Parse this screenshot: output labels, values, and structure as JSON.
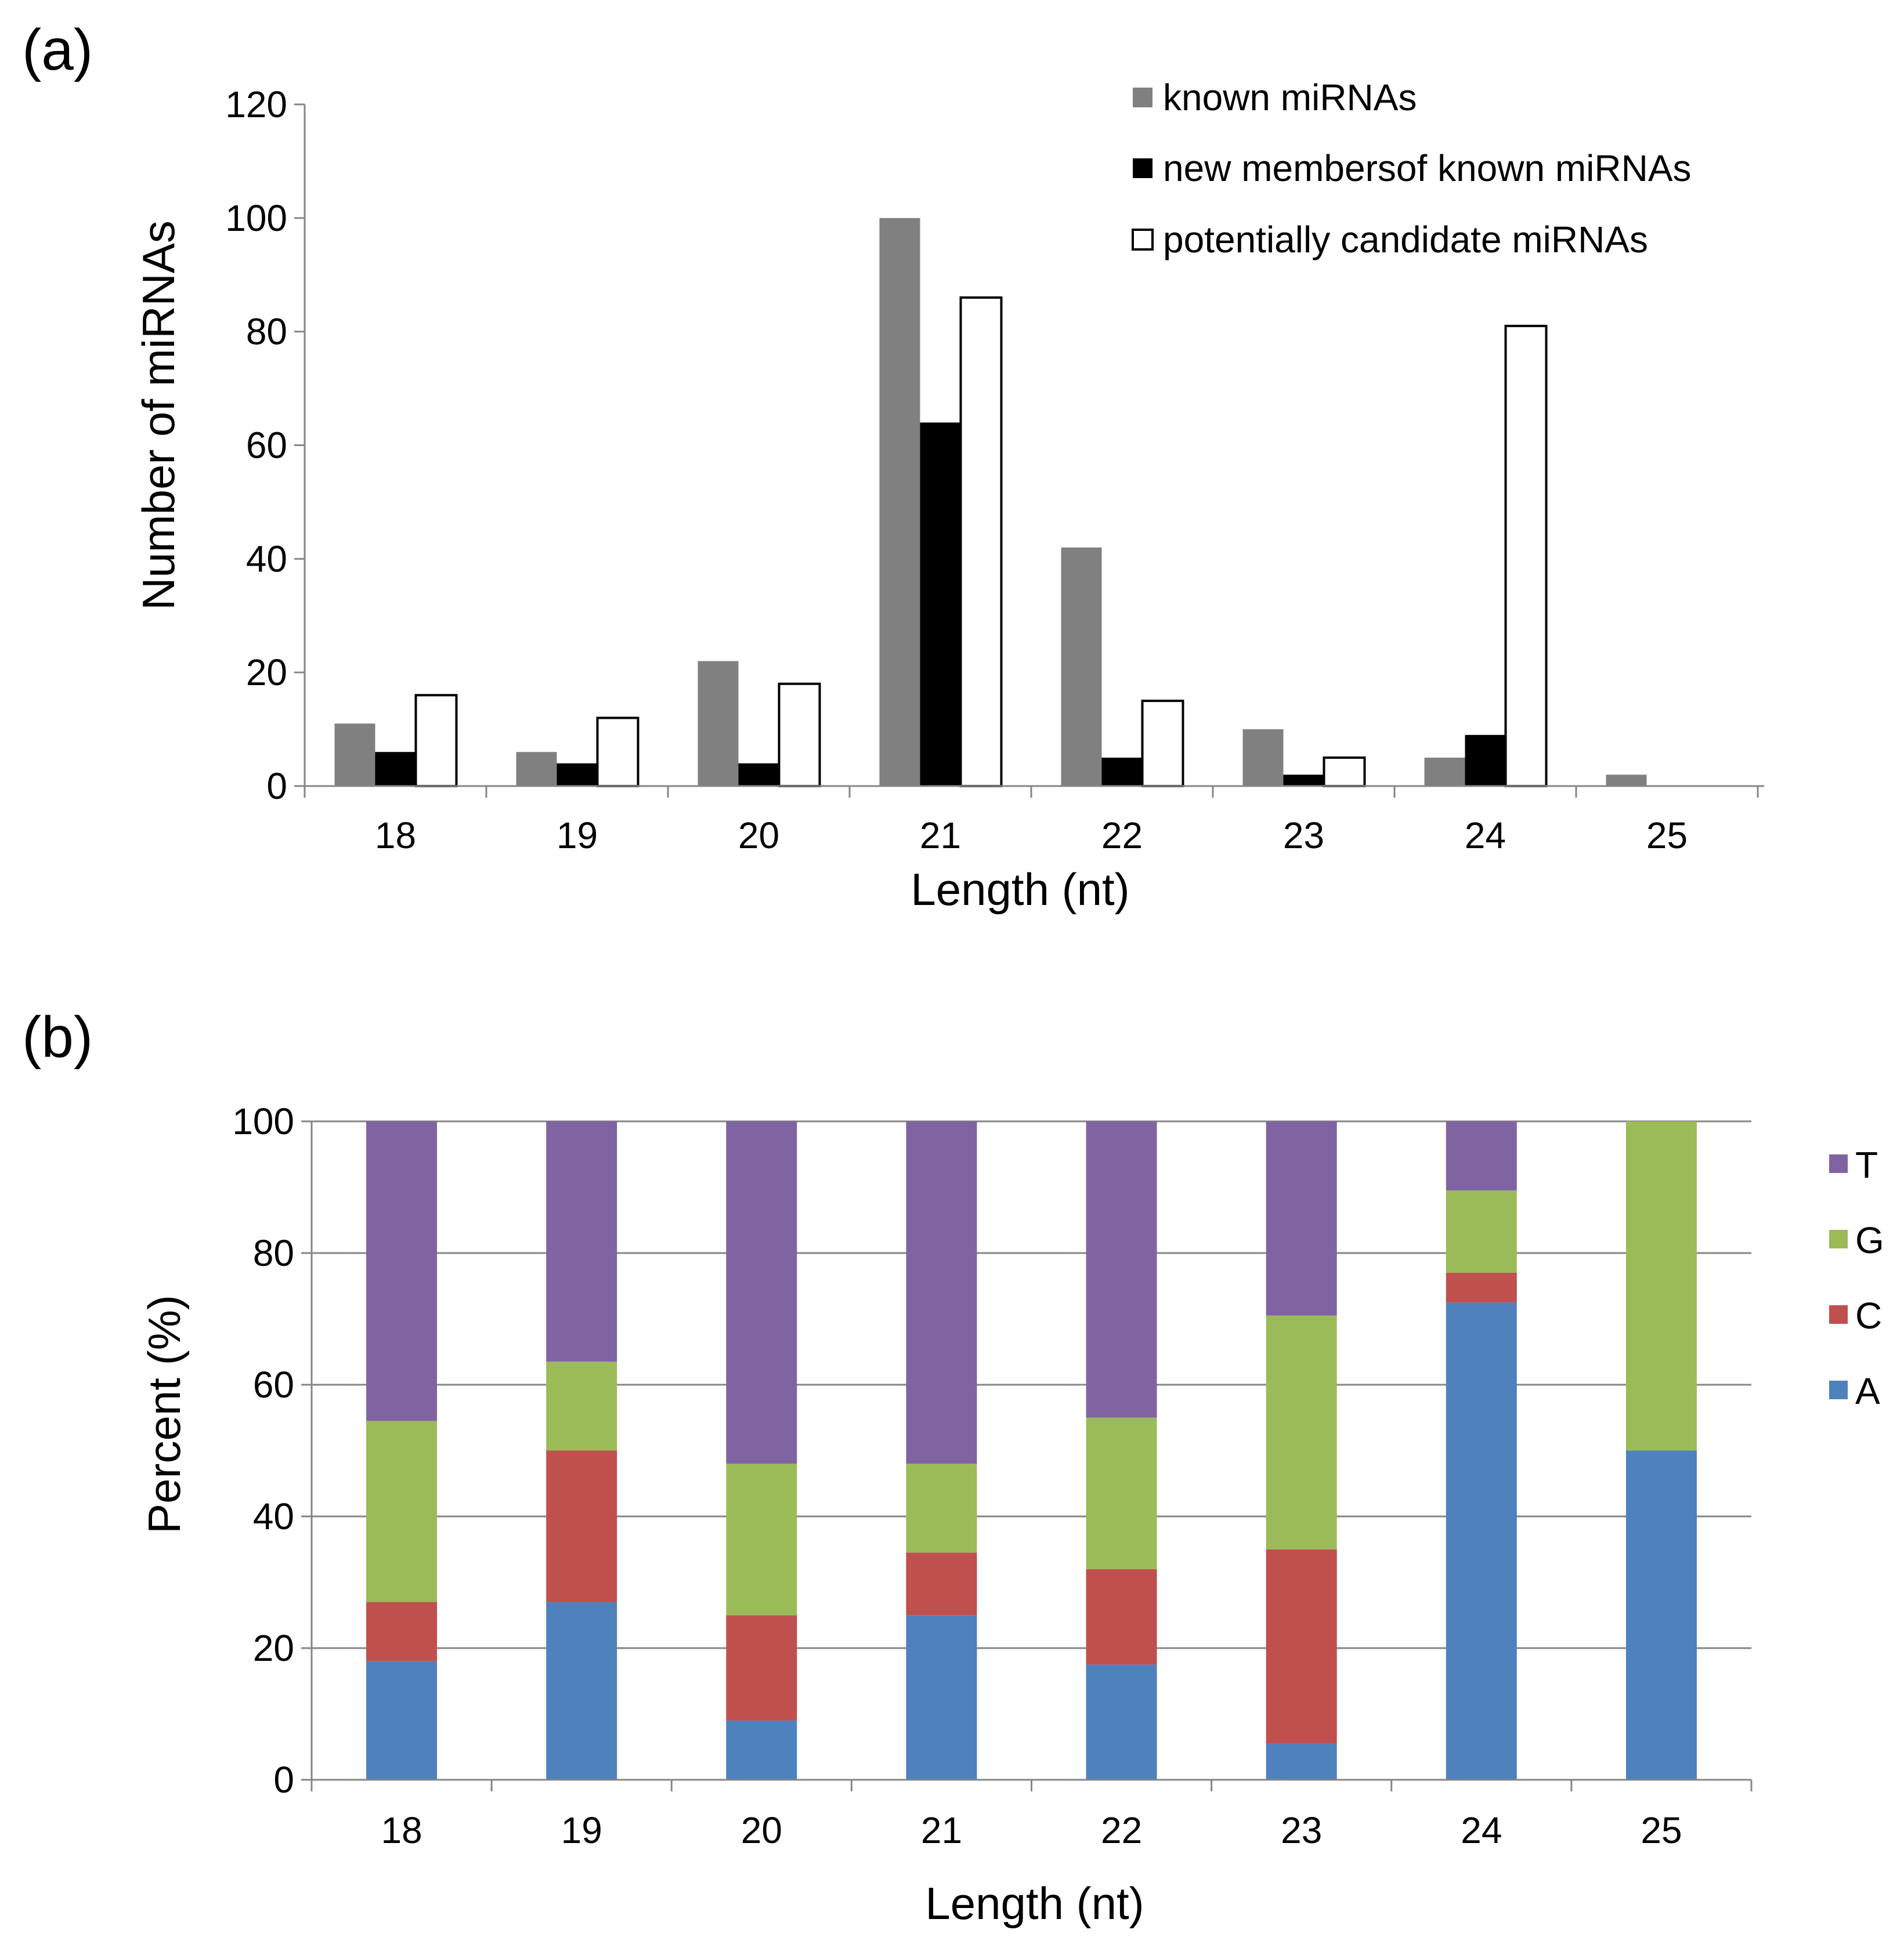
{
  "chart_data": [
    {
      "panel_label": "(a)",
      "type": "bar",
      "categories": [
        "18",
        "19",
        "20",
        "21",
        "22",
        "23",
        "24",
        "25"
      ],
      "series": [
        {
          "name": "known miRNAs",
          "color": "#808080",
          "values": [
            11,
            6,
            22,
            100,
            42,
            10,
            5,
            2
          ]
        },
        {
          "name": "new membersof known miRNAs",
          "color": "#000000",
          "values": [
            6,
            4,
            4,
            64,
            5,
            2,
            9,
            0
          ]
        },
        {
          "name": "potentially candidate miRNAs",
          "color": "#ffffff",
          "values": [
            16,
            12,
            18,
            86,
            15,
            5,
            81,
            0
          ]
        }
      ],
      "xlabel": "Length (nt)",
      "ylabel": "Number of miRNAs",
      "ylim": [
        0,
        120
      ],
      "yticks": [
        "0",
        "20",
        "40",
        "60",
        "80",
        "100",
        "120"
      ],
      "grid": false,
      "legend_position": "top-right"
    },
    {
      "panel_label": "(b)",
      "type": "bar",
      "stacked": true,
      "categories": [
        "18",
        "19",
        "20",
        "21",
        "22",
        "23",
        "24",
        "25"
      ],
      "series": [
        {
          "name": "A",
          "color": "#4f81bd",
          "values": [
            18,
            27,
            9,
            25,
            17.5,
            5.5,
            72.5,
            50
          ]
        },
        {
          "name": "C",
          "color": "#c0504d",
          "values": [
            9,
            23,
            16,
            9.5,
            14.5,
            29.5,
            4.5,
            0
          ]
        },
        {
          "name": "G",
          "color": "#9bbb59",
          "values": [
            27.5,
            13.5,
            23,
            13.5,
            23,
            35.5,
            12.5,
            50
          ]
        },
        {
          "name": "T",
          "color": "#8064a2",
          "values": [
            45.5,
            36.5,
            52,
            52,
            45,
            29.5,
            10.5,
            0
          ]
        }
      ],
      "xlabel": "Length (nt)",
      "ylabel": "Percent (%)",
      "ylim": [
        0,
        100
      ],
      "yticks": [
        "0",
        "20",
        "40",
        "60",
        "80",
        "100"
      ],
      "grid": true,
      "legend_position": "right"
    }
  ]
}
